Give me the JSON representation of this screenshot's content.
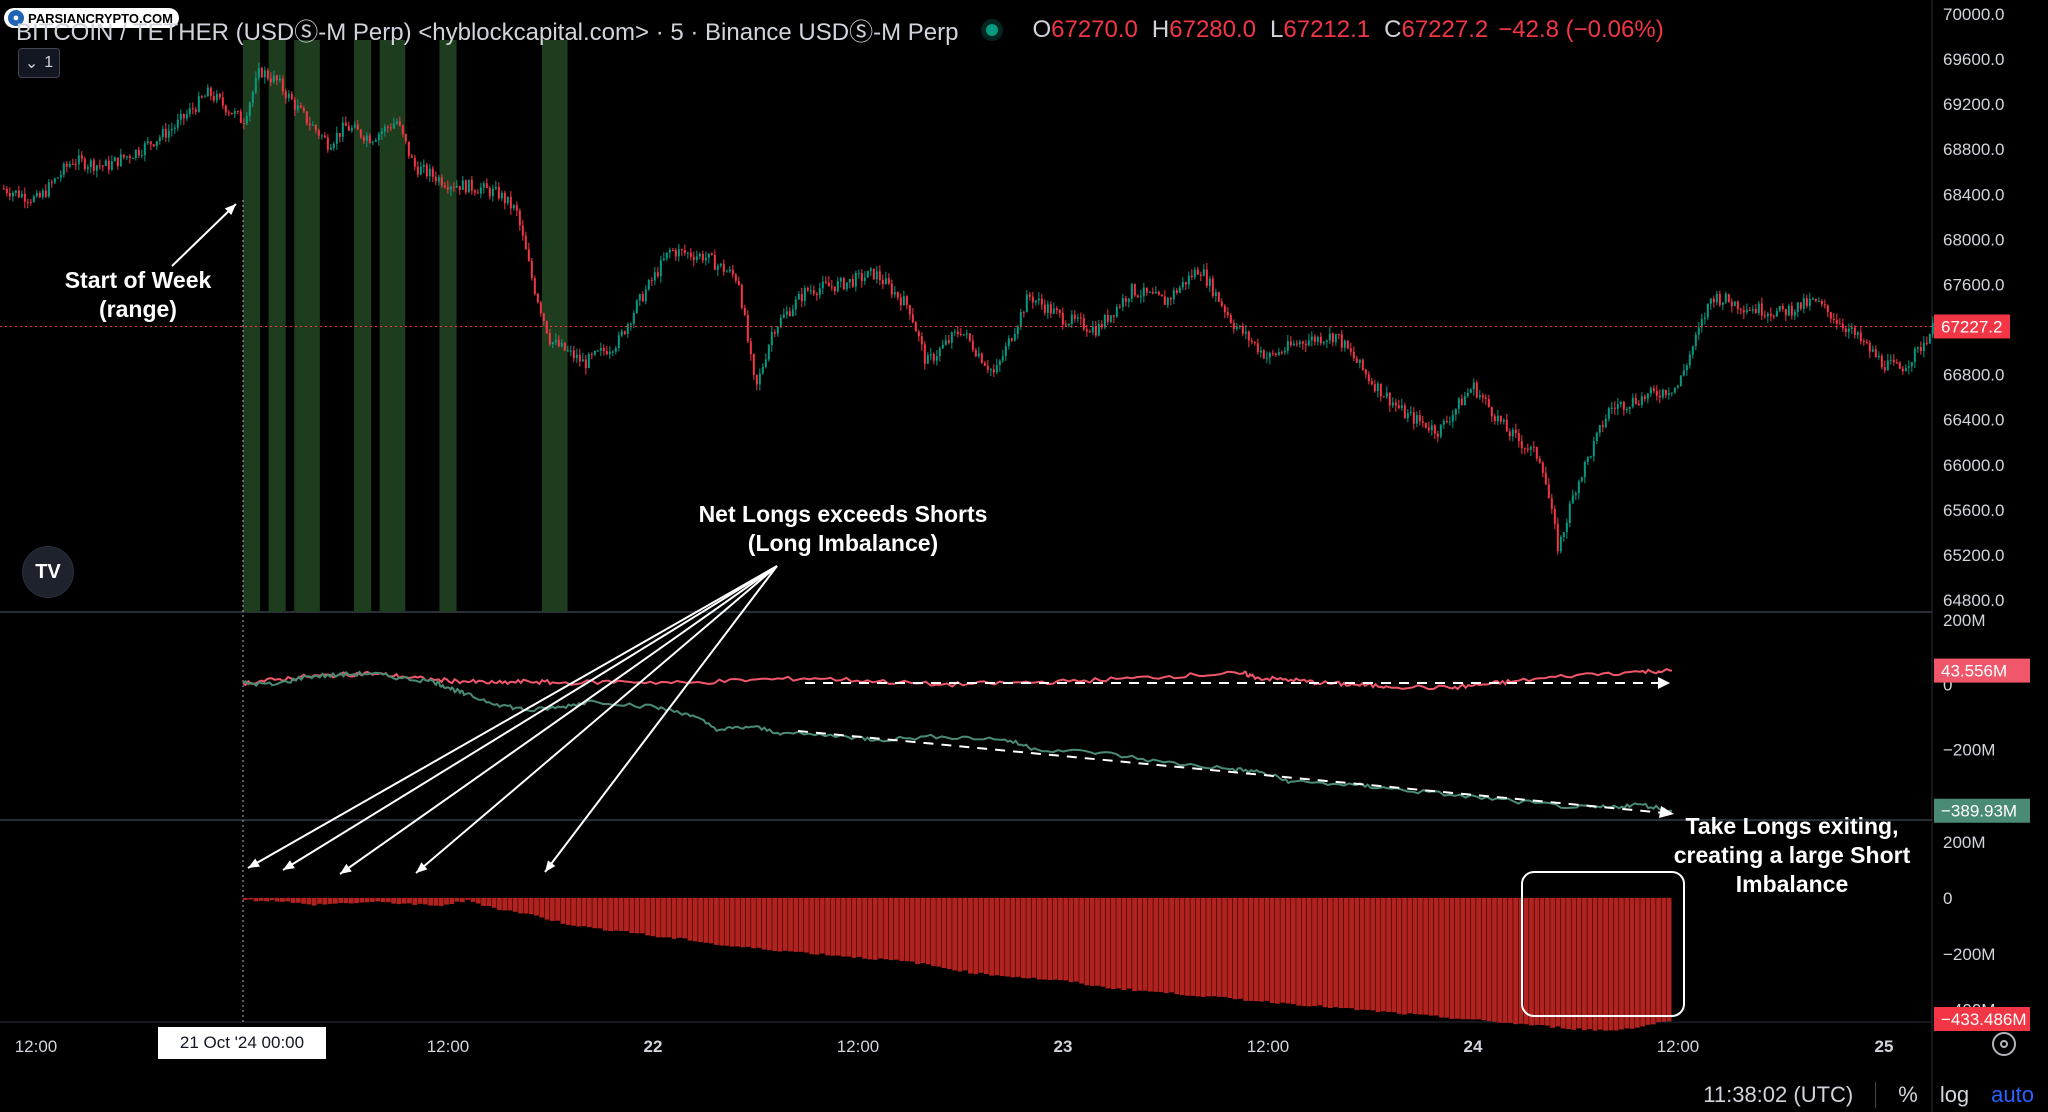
{
  "header": {
    "symbol": "BITCOIN / TETHER (USDⓈ-M Perp) <hyblockcapital.com> · 5 · Binance USDⓈ-M Perp",
    "o_label": "O",
    "o_value": "67270.0",
    "h_label": "H",
    "h_value": "67280.0",
    "l_label": "L",
    "l_value": "67212.1",
    "c_label": "C",
    "c_value": "67227.2",
    "change": "−42.8 (−0.06%)",
    "watermark": "PARSIANCRYPTO.COM",
    "collapse_label": "1",
    "tv_logo_text": "TV"
  },
  "annotations": {
    "start_week": "Start of Week\n(range)",
    "net_longs": "Net Longs exceeds Shorts\n(Long Imbalance)",
    "take_longs": "Take Longs exiting,\ncreating a large Short\nImbalance"
  },
  "footer": {
    "time": "11:38:02 (UTC)",
    "percent": "%",
    "log": "log",
    "auto": "auto",
    "date_badge": "21 Oct '24   00:00"
  },
  "colors": {
    "up": "#089981",
    "down": "#f23645",
    "last_price": "#f23645",
    "highlight": "#1e3d1e",
    "red_line": "#f0576a",
    "green_line": "#4a8b75",
    "hist": "#b2231f"
  },
  "chart_data": [
    {
      "type": "candlestick",
      "title": "BITCOIN / TETHER (USDⓈ-M Perp) 5m",
      "x_ticks": [
        "12:00",
        "21 Oct '24",
        "12:00",
        "22",
        "12:00",
        "23",
        "12:00",
        "24",
        "12:00",
        "25"
      ],
      "y_ticks": [
        64800,
        65200,
        65600,
        66000,
        66400,
        66800,
        67200,
        67600,
        68000,
        68400,
        68800,
        69200,
        69600,
        70000
      ],
      "ylim": [
        64800,
        70000
      ],
      "last_price": 67227.2,
      "last_price_label": "67227.2",
      "price_path": [
        [
          "20 10:00",
          68450
        ],
        [
          "20 12:00",
          68350
        ],
        [
          "20 14:00",
          68700
        ],
        [
          "20 16:00",
          68650
        ],
        [
          "20 18:00",
          68800
        ],
        [
          "20 20:00",
          69000
        ],
        [
          "20 22:00",
          69300
        ],
        [
          "21 00:00",
          69050
        ],
        [
          "21 01:00",
          69500
        ],
        [
          "21 02:00",
          69400
        ],
        [
          "21 03:30",
          69100
        ],
        [
          "21 05:00",
          68850
        ],
        [
          "21 06:00",
          69000
        ],
        [
          "21 07:30",
          68900
        ],
        [
          "21 09:00",
          69050
        ],
        [
          "21 10:00",
          68650
        ],
        [
          "21 12:00",
          68500
        ],
        [
          "21 14:00",
          68450
        ],
        [
          "21 15:00",
          68400
        ],
        [
          "21 16:00",
          68250
        ],
        [
          "21 17:00",
          67600
        ],
        [
          "21 18:00",
          67100
        ],
        [
          "21 20:00",
          66900
        ],
        [
          "21 22:00",
          67100
        ],
        [
          "21 23:00",
          67400
        ],
        [
          "22 01:00",
          67900
        ],
        [
          "22 03:00",
          67850
        ],
        [
          "22 05:00",
          67650
        ],
        [
          "22 06:00",
          66650
        ],
        [
          "22 07:00",
          67200
        ],
        [
          "22 09:00",
          67550
        ],
        [
          "22 11:00",
          67600
        ],
        [
          "22 13:00",
          67700
        ],
        [
          "22 15:00",
          67400
        ],
        [
          "22 16:00",
          66900
        ],
        [
          "22 18:00",
          67200
        ],
        [
          "22 20:00",
          66800
        ],
        [
          "22 22:00",
          67500
        ],
        [
          "23 00:00",
          67300
        ],
        [
          "23 02:00",
          67200
        ],
        [
          "23 04:00",
          67550
        ],
        [
          "23 06:00",
          67450
        ],
        [
          "23 08:00",
          67750
        ],
        [
          "23 10:00",
          67250
        ],
        [
          "23 12:00",
          66950
        ],
        [
          "23 14:00",
          67100
        ],
        [
          "23 16:00",
          67150
        ],
        [
          "23 18:00",
          66750
        ],
        [
          "23 20:00",
          66450
        ],
        [
          "23 22:00",
          66300
        ],
        [
          "24 00:00",
          66700
        ],
        [
          "24 02:00",
          66300
        ],
        [
          "24 04:00",
          66050
        ],
        [
          "24 05:00",
          65250
        ],
        [
          "24 06:00",
          65800
        ],
        [
          "24 08:00",
          66500
        ],
        [
          "24 10:00",
          66600
        ],
        [
          "24 12:00",
          66700
        ],
        [
          "24 13:00",
          67100
        ],
        [
          "24 14:00",
          67500
        ],
        [
          "24 16:00",
          67400
        ],
        [
          "24 18:00",
          67350
        ],
        [
          "24 20:00",
          67450
        ],
        [
          "24 22:00",
          67200
        ],
        [
          "25 00:00",
          66900
        ],
        [
          "25 01:00",
          66850
        ],
        [
          "25 02:00",
          67000
        ],
        [
          "25 03:00",
          67230
        ]
      ],
      "highlight_bands": [
        [
          "21 00:00",
          "21 01:00"
        ],
        [
          "21 01:30",
          "21 02:30"
        ],
        [
          "21 03:00",
          "21 04:30"
        ],
        [
          "21 06:30",
          "21 07:30"
        ],
        [
          "21 08:00",
          "21 09:30"
        ],
        [
          "21 11:30",
          "21 12:30"
        ],
        [
          "21 17:30",
          "21 19:00"
        ]
      ]
    },
    {
      "type": "line",
      "y_ticks": [
        "200M",
        "0",
        "−200M"
      ],
      "ylim": [
        -400,
        200
      ],
      "series": [
        {
          "label": "43.556M",
          "color": "#f0576a",
          "values": [
            [
              0,
              5
            ],
            [
              2,
              15
            ],
            [
              4,
              25
            ],
            [
              6,
              30
            ],
            [
              8,
              35
            ],
            [
              10,
              25
            ],
            [
              12,
              15
            ],
            [
              14,
              10
            ],
            [
              16,
              5
            ],
            [
              18,
              10
            ],
            [
              20,
              5
            ],
            [
              24,
              10
            ],
            [
              28,
              5
            ],
            [
              32,
              15
            ],
            [
              36,
              20
            ],
            [
              40,
              10
            ],
            [
              44,
              0
            ],
            [
              48,
              5
            ],
            [
              52,
              10
            ],
            [
              56,
              20
            ],
            [
              60,
              30
            ],
            [
              63,
              35
            ],
            [
              64,
              20
            ],
            [
              66,
              15
            ],
            [
              68,
              5
            ],
            [
              70,
              0
            ],
            [
              72,
              -5
            ],
            [
              76,
              -10
            ],
            [
              78,
              0
            ],
            [
              80,
              10
            ],
            [
              84,
              30
            ],
            [
              88,
              40
            ],
            [
              90,
              43.556
            ]
          ]
        },
        {
          "label": "−389.93M",
          "color": "#4a8b75",
          "values": [
            [
              0,
              5
            ],
            [
              2,
              0
            ],
            [
              4,
              25
            ],
            [
              6,
              30
            ],
            [
              8,
              35
            ],
            [
              10,
              20
            ],
            [
              12,
              10
            ],
            [
              13,
              -10
            ],
            [
              14,
              -30
            ],
            [
              16,
              -60
            ],
            [
              18,
              -80
            ],
            [
              20,
              -70
            ],
            [
              22,
              -50
            ],
            [
              26,
              -70
            ],
            [
              28,
              -90
            ],
            [
              30,
              -140
            ],
            [
              32,
              -130
            ],
            [
              34,
              -150
            ],
            [
              38,
              -160
            ],
            [
              40,
              -170
            ],
            [
              44,
              -160
            ],
            [
              48,
              -170
            ],
            [
              50,
              -200
            ],
            [
              54,
              -210
            ],
            [
              58,
              -240
            ],
            [
              62,
              -260
            ],
            [
              64,
              -270
            ],
            [
              66,
              -300
            ],
            [
              70,
              -310
            ],
            [
              72,
              -320
            ],
            [
              76,
              -340
            ],
            [
              80,
              -360
            ],
            [
              84,
              -380
            ],
            [
              86,
              -380
            ],
            [
              88,
              -370
            ],
            [
              90,
              -389.93
            ]
          ]
        }
      ]
    },
    {
      "type": "histogram",
      "y_ticks": [
        "200M",
        "0",
        "−200M",
        "−400M"
      ],
      "ylim": [
        -480,
        200
      ],
      "last_label": "−433.486M",
      "values": [
        [
          0,
          -8
        ],
        [
          2,
          -10
        ],
        [
          4,
          -25
        ],
        [
          6,
          -20
        ],
        [
          8,
          -15
        ],
        [
          10,
          -20
        ],
        [
          12,
          -30
        ],
        [
          14,
          -10
        ],
        [
          16,
          -40
        ],
        [
          18,
          -60
        ],
        [
          20,
          -90
        ],
        [
          22,
          -110
        ],
        [
          24,
          -120
        ],
        [
          26,
          -140
        ],
        [
          28,
          -150
        ],
        [
          30,
          -170
        ],
        [
          32,
          -180
        ],
        [
          34,
          -190
        ],
        [
          36,
          -200
        ],
        [
          38,
          -210
        ],
        [
          40,
          -220
        ],
        [
          42,
          -230
        ],
        [
          44,
          -250
        ],
        [
          46,
          -270
        ],
        [
          48,
          -280
        ],
        [
          50,
          -290
        ],
        [
          52,
          -300
        ],
        [
          54,
          -320
        ],
        [
          56,
          -330
        ],
        [
          58,
          -340
        ],
        [
          60,
          -350
        ],
        [
          62,
          -360
        ],
        [
          64,
          -370
        ],
        [
          66,
          -380
        ],
        [
          68,
          -390
        ],
        [
          70,
          -400
        ],
        [
          72,
          -410
        ],
        [
          74,
          -420
        ],
        [
          76,
          -430
        ],
        [
          78,
          -440
        ],
        [
          80,
          -450
        ],
        [
          82,
          -460
        ],
        [
          84,
          -470
        ],
        [
          86,
          -475
        ],
        [
          88,
          -460
        ],
        [
          90,
          -433.486
        ]
      ]
    }
  ]
}
